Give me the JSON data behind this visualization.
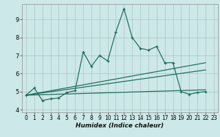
{
  "xlabel": "Humidex (Indice chaleur)",
  "background_color": "#cde8e8",
  "grid_color": "#b0c8c8",
  "line_color": "#1a6b5a",
  "xlim": [
    -0.5,
    23.5
  ],
  "ylim": [
    3.85,
    9.85
  ],
  "yticks": [
    4,
    5,
    6,
    7,
    8,
    9
  ],
  "xticks": [
    0,
    1,
    2,
    3,
    4,
    5,
    6,
    7,
    8,
    9,
    10,
    11,
    12,
    13,
    14,
    15,
    16,
    17,
    18,
    19,
    20,
    21,
    22,
    23
  ],
  "series1_x": [
    0,
    1,
    2,
    3,
    4,
    5,
    6,
    7,
    8,
    9,
    10,
    11,
    12,
    13,
    14,
    15,
    16,
    17,
    18,
    19,
    20,
    21,
    22
  ],
  "series1_y": [
    4.8,
    5.2,
    4.5,
    4.6,
    4.65,
    4.95,
    5.05,
    7.2,
    6.4,
    7.0,
    6.7,
    8.3,
    9.6,
    8.0,
    7.4,
    7.3,
    7.5,
    6.6,
    6.6,
    5.0,
    4.85,
    4.95,
    5.0
  ],
  "series2_x": [
    0,
    22
  ],
  "series2_y": [
    4.8,
    6.6
  ],
  "series3_x": [
    0,
    22
  ],
  "series3_y": [
    4.8,
    6.2
  ],
  "series4_x": [
    0,
    22
  ],
  "series4_y": [
    4.8,
    5.1
  ]
}
